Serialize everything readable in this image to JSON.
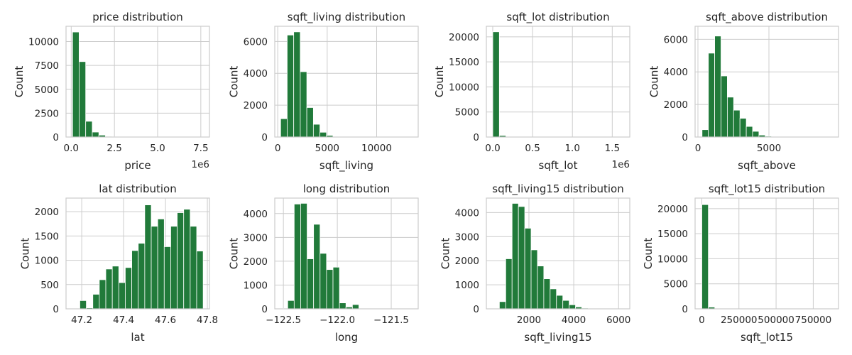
{
  "bar_color": "#217a3a",
  "grid_color": "#cccccc",
  "chart_data": [
    {
      "type": "bar",
      "title": "price distribution",
      "xlabel": "price",
      "ylabel": "Count",
      "grid": true,
      "x_offset_label": "1e6",
      "xlim": [
        -300000,
        8000000
      ],
      "ylim": [
        0,
        11600
      ],
      "x_ticks": [
        0,
        2500000,
        5000000,
        7500000
      ],
      "x_tick_labels": [
        "0.0",
        "2.5",
        "5.0",
        "7.5"
      ],
      "y_ticks": [
        0,
        2500,
        5000,
        7500,
        10000
      ],
      "y_tick_labels": [
        "0",
        "2500",
        "5000",
        "7500",
        "10000"
      ],
      "bin_start": 75000,
      "bin_width": 381250,
      "values": [
        11000,
        7900,
        1650,
        520,
        200,
        70,
        25,
        10,
        5,
        3,
        2,
        1,
        0,
        0,
        0,
        0,
        0,
        0,
        0,
        1
      ]
    },
    {
      "type": "bar",
      "title": "sqft_living distribution",
      "xlabel": "sqft_living",
      "ylabel": "Count",
      "grid": true,
      "xlim": [
        -300,
        14200
      ],
      "ylim": [
        0,
        6950
      ],
      "x_ticks": [
        0,
        5000,
        10000
      ],
      "x_tick_labels": [
        "0",
        "5000",
        "10000"
      ],
      "y_ticks": [
        0,
        2000,
        4000,
        6000
      ],
      "y_tick_labels": [
        "0",
        "2000",
        "4000",
        "6000"
      ],
      "bin_start": 290,
      "bin_width": 662.5,
      "values": [
        1150,
        6400,
        6600,
        4100,
        1850,
        800,
        300,
        100,
        40,
        20,
        8,
        3,
        1,
        0,
        0,
        0,
        0,
        0,
        0,
        1
      ]
    },
    {
      "type": "bar",
      "title": "sqft_lot distribution",
      "xlabel": "sqft_lot",
      "ylabel": "Count",
      "grid": true,
      "x_offset_label": "1e6",
      "xlim": [
        -80000,
        1720000
      ],
      "ylim": [
        0,
        22100
      ],
      "x_ticks": [
        0,
        500000,
        1000000,
        1500000
      ],
      "x_tick_labels": [
        "0.0",
        "0.5",
        "1.0",
        "1.5"
      ],
      "y_ticks": [
        0,
        5000,
        10000,
        15000,
        20000
      ],
      "y_tick_labels": [
        "0",
        "5000",
        "10000",
        "15000",
        "20000"
      ],
      "bin_start": 520,
      "bin_width": 82533,
      "values": [
        21000,
        300,
        50,
        15,
        5,
        3,
        2,
        1,
        1,
        1,
        1,
        0,
        0,
        0,
        0,
        0,
        0,
        0,
        0,
        1
      ]
    },
    {
      "type": "bar",
      "title": "sqft_above distribution",
      "xlabel": "sqft_above",
      "ylabel": "Count",
      "grid": true,
      "xlim": [
        -200,
        9900
      ],
      "ylim": [
        0,
        6800
      ],
      "x_ticks": [
        0,
        5000
      ],
      "x_tick_labels": [
        "0",
        "5000"
      ],
      "y_ticks": [
        0,
        2000,
        4000,
        6000
      ],
      "y_tick_labels": [
        "0",
        "2000",
        "4000",
        "6000"
      ],
      "bin_start": 290,
      "bin_width": 445,
      "values": [
        450,
        5150,
        6200,
        3750,
        2450,
        1650,
        1150,
        650,
        350,
        120,
        50,
        20,
        10,
        5,
        3,
        2,
        1,
        1,
        0,
        1
      ]
    },
    {
      "type": "bar",
      "title": "lat distribution",
      "xlabel": "lat",
      "ylabel": "Count",
      "grid": true,
      "xlim": [
        47.125,
        47.81
      ],
      "ylim": [
        0,
        2280
      ],
      "x_ticks": [
        47.2,
        47.4,
        47.6,
        47.8
      ],
      "x_tick_labels": [
        "47.2",
        "47.4",
        "47.6",
        "47.8"
      ],
      "y_ticks": [
        0,
        500,
        1000,
        1500,
        2000
      ],
      "y_tick_labels": [
        "0",
        "500",
        "1000",
        "1500",
        "2000"
      ],
      "bin_start": 47.16,
      "bin_width": 0.031,
      "values": [
        5,
        170,
        20,
        300,
        600,
        820,
        880,
        540,
        850,
        1200,
        1350,
        2140,
        1700,
        1850,
        1280,
        1700,
        1980,
        2050,
        1700,
        1190
      ]
    },
    {
      "type": "bar",
      "title": "long distribution",
      "xlabel": "long",
      "ylabel": "Count",
      "grid": true,
      "xlim": [
        -122.58,
        -121.25
      ],
      "ylim": [
        0,
        4650
      ],
      "x_ticks": [
        -122.5,
        -122.0,
        -121.5
      ],
      "x_tick_labels": [
        "−122.5",
        "−122.0",
        "−121.5"
      ],
      "y_ticks": [
        0,
        1000,
        2000,
        3000,
        4000
      ],
      "y_tick_labels": [
        "0",
        "1000",
        "2000",
        "3000",
        "4000"
      ],
      "bin_start": -122.52,
      "bin_width": 0.06,
      "values": [
        20,
        350,
        4400,
        4430,
        2100,
        3550,
        2330,
        1650,
        1750,
        250,
        80,
        180,
        10,
        5,
        3,
        2,
        1,
        1,
        0,
        1
      ]
    },
    {
      "type": "bar",
      "title": "sqft_living15 distribution",
      "xlabel": "sqft_living15",
      "ylabel": "Count",
      "grid": true,
      "xlim": [
        100,
        6500
      ],
      "ylim": [
        0,
        4600
      ],
      "x_ticks": [
        2000,
        4000,
        6000
      ],
      "x_tick_labels": [
        "2000",
        "4000",
        "6000"
      ],
      "y_ticks": [
        0,
        1000,
        2000,
        3000,
        4000
      ],
      "y_tick_labels": [
        "0",
        "1000",
        "2000",
        "3000",
        "4000"
      ],
      "bin_start": 399,
      "bin_width": 283,
      "values": [
        20,
        300,
        2080,
        4380,
        4250,
        3350,
        2450,
        1780,
        1250,
        830,
        560,
        350,
        170,
        80,
        30,
        15,
        8,
        4,
        2,
        1
      ]
    },
    {
      "type": "bar",
      "title": "sqft_lot15 distribution",
      "xlabel": "sqft_lot15",
      "ylabel": "Count",
      "grid": true,
      "xlim": [
        -45000,
        920000
      ],
      "ylim": [
        0,
        22100
      ],
      "x_ticks": [
        0,
        250000,
        500000,
        750000
      ],
      "x_tick_labels": [
        "0",
        "250000",
        "500000",
        "750000"
      ],
      "y_ticks": [
        0,
        5000,
        10000,
        15000,
        20000
      ],
      "y_tick_labels": [
        "0",
        "5000",
        "10000",
        "15000",
        "20000"
      ],
      "bin_start": 651,
      "bin_width": 43580,
      "values": [
        20800,
        350,
        60,
        20,
        10,
        5,
        3,
        2,
        1,
        1,
        1,
        1,
        0,
        0,
        0,
        0,
        0,
        0,
        0,
        1
      ]
    }
  ]
}
